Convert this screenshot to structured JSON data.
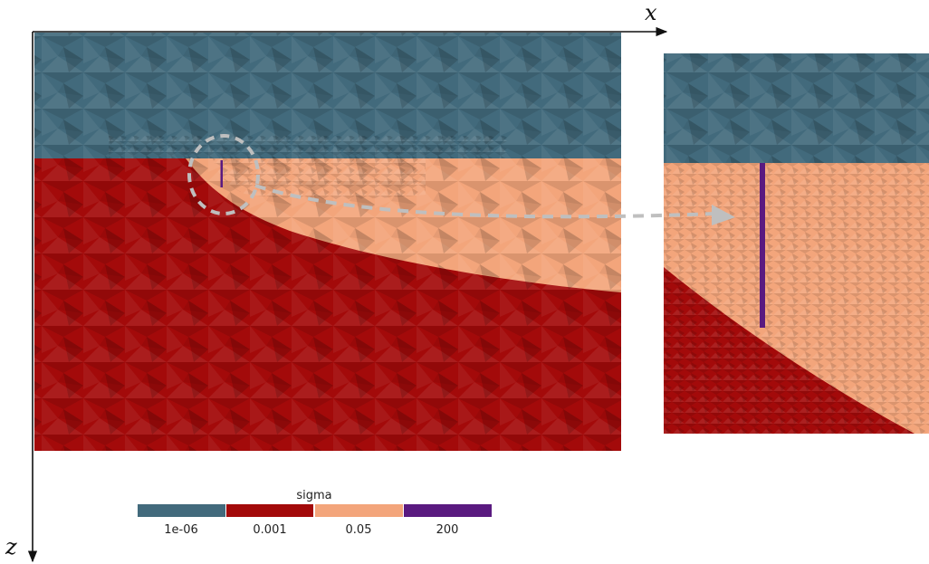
{
  "axes": {
    "x_label": "x",
    "z_label": "z"
  },
  "legend": {
    "title": "sigma",
    "entries": [
      {
        "label": "1e-06",
        "color": "#426a7c"
      },
      {
        "label": "0.001",
        "color": "#a30a0a"
      },
      {
        "label": "0.05",
        "color": "#f3a57b"
      },
      {
        "label": "200",
        "color": "#5a1a80"
      }
    ]
  },
  "colors": {
    "air": "#426a7c",
    "host": "#a30a0a",
    "target": "#f3a57b",
    "well": "#5a1a80",
    "zoom_marker": "#bfbfbf",
    "axis": "#111111"
  },
  "mesh_regions": [
    "air",
    "host",
    "target",
    "well"
  ],
  "annotations": [
    "zoom-circle",
    "zoom-arrow",
    "zoom-inset"
  ]
}
